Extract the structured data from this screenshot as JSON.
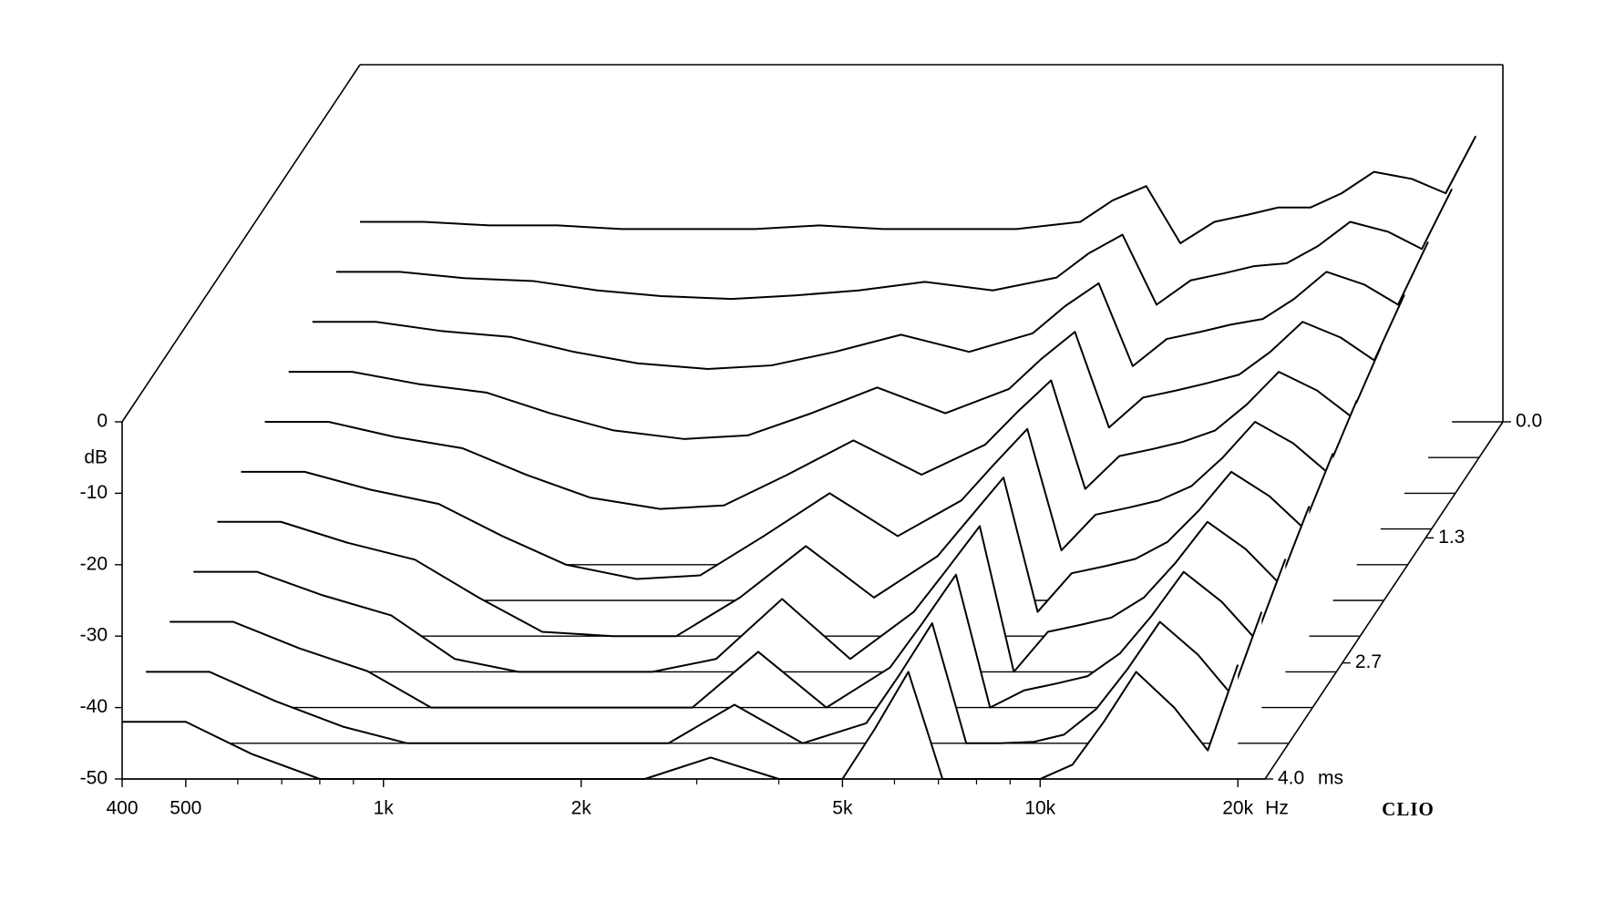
{
  "chart_data": {
    "type": "waterfall",
    "x_unit": "Hz",
    "y_unit": "dB",
    "z_unit": "ms",
    "logo": "CLIO",
    "xscale": "log",
    "xlim": [
      400,
      22000
    ],
    "ylim": [
      -50,
      0
    ],
    "zlim": [
      0,
      4.0
    ],
    "xticks": [
      400,
      500,
      {
        "value": 1000,
        "label": "1k"
      },
      {
        "value": 2000,
        "label": "2k"
      },
      {
        "value": 5000,
        "label": "5k"
      },
      {
        "value": 10000,
        "label": "10k"
      },
      {
        "value": 20000,
        "label": "20k"
      }
    ],
    "xminorticks": [
      600,
      700,
      800,
      900,
      3000,
      4000,
      6000,
      7000,
      8000,
      9000
    ],
    "yticks": [
      0,
      -10,
      -20,
      -30,
      -40,
      -50
    ],
    "zticks": [
      {
        "value": 0,
        "label": "0.0"
      },
      1.3,
      2.7,
      {
        "value": 4.0,
        "label": "4.0"
      }
    ],
    "color": "#000000",
    "x": [
      400,
      500,
      630,
      800,
      1000,
      1250,
      1600,
      2000,
      2500,
      3150,
      4000,
      5000,
      5600,
      6300,
      7100,
      8000,
      9000,
      10000,
      11200,
      12500,
      14000,
      16000,
      18000,
      20000
    ],
    "slices": [
      {
        "time": 0,
        "values": [
          -22,
          -22,
          -22.5,
          -22.5,
          -23,
          -23,
          -23,
          -22.5,
          -23,
          -23,
          -23,
          -22,
          -19,
          -17,
          -25,
          -22,
          -21,
          -20,
          -20,
          -18,
          -15,
          -16,
          -18,
          -10
        ]
      },
      {
        "time": 0.4,
        "values": [
          -24,
          -24,
          -24.9,
          -25.3,
          -26.6,
          -27.4,
          -27.8,
          -27.3,
          -26.6,
          -25.4,
          -26.6,
          -24.8,
          -21.4,
          -18.8,
          -28.6,
          -25.2,
          -24.2,
          -23.2,
          -22.8,
          -20.4,
          -17,
          -18.4,
          -20.8,
          -12.4
        ]
      },
      {
        "time": 0.8,
        "values": [
          -26,
          -26,
          -27.3,
          -28.1,
          -30.2,
          -31.8,
          -32.6,
          -32.1,
          -30.2,
          -27.8,
          -30.2,
          -27.6,
          -23.8,
          -20.6,
          -32.2,
          -28.4,
          -27.4,
          -26.4,
          -25.6,
          -22.8,
          -19,
          -20.8,
          -23.6,
          -14.8
        ]
      },
      {
        "time": 1.2,
        "values": [
          -28,
          -28,
          -29.7,
          -30.9,
          -33.8,
          -36.2,
          -37.4,
          -36.9,
          -33.8,
          -30.2,
          -33.8,
          -30.4,
          -26.2,
          -22.4,
          -35.8,
          -31.6,
          -30.6,
          -29.6,
          -28.4,
          -25.2,
          -21,
          -23.2,
          -26.4,
          -17.2
        ]
      },
      {
        "time": 1.6,
        "values": [
          -30,
          -30,
          -32.1,
          -33.7,
          -37.4,
          -40.6,
          -42.2,
          -41.7,
          -37.4,
          -32.6,
          -37.4,
          -33.2,
          -28.6,
          -24.2,
          -39.4,
          -34.8,
          -33.8,
          -32.8,
          -31.2,
          -27.6,
          -23,
          -25.6,
          -29.2,
          -19.6
        ]
      },
      {
        "time": 2.0,
        "values": [
          -32,
          -32,
          -34.5,
          -36.5,
          -41,
          -45,
          -47,
          -46.5,
          -41,
          -35,
          -41,
          -36,
          -31,
          -26,
          -43,
          -38,
          -37,
          -36,
          -34,
          -30,
          -25,
          -28,
          -32,
          -22
        ]
      },
      {
        "time": 2.4,
        "values": [
          -34,
          -34,
          -36.9,
          -39.3,
          -44.6,
          -49.4,
          -50,
          -50,
          -44.6,
          -37.4,
          -44.6,
          -38.8,
          -33.4,
          -27.8,
          -46.6,
          -41.2,
          -40.2,
          -39.2,
          -36.8,
          -32.4,
          -27,
          -30.4,
          -34.8,
          -24.4
        ]
      },
      {
        "time": 2.8,
        "values": [
          -36,
          -36,
          -39.3,
          -42.1,
          -48.2,
          -50,
          -50,
          -50,
          -48.2,
          -39.8,
          -48.2,
          -41.6,
          -35.8,
          -29.6,
          -50,
          -44.4,
          -43.4,
          -42.4,
          -39.6,
          -34.8,
          -29,
          -32.8,
          -37.6,
          -26.8
        ]
      },
      {
        "time": 3.2,
        "values": [
          -38,
          -38,
          -41.7,
          -44.9,
          -50,
          -50,
          -50,
          -50,
          -50,
          -42.2,
          -50,
          -44.4,
          -38.2,
          -31.4,
          -50,
          -47.6,
          -46.6,
          -45.6,
          -42.4,
          -37.2,
          -31,
          -35.2,
          -40.4,
          -29.2
        ]
      },
      {
        "time": 3.6,
        "values": [
          -40,
          -40,
          -44.1,
          -47.7,
          -50,
          -50,
          -50,
          -50,
          -50,
          -44.6,
          -50,
          -47.2,
          -40.6,
          -33.2,
          -50,
          -50,
          -49.8,
          -48.8,
          -45.2,
          -39.6,
          -33,
          -37.6,
          -43.2,
          -31.6
        ]
      },
      {
        "time": 4.0,
        "values": [
          -42,
          -42,
          -46.5,
          -50,
          -50,
          -50,
          -50,
          -50,
          -50,
          -47,
          -50,
          -50,
          -43,
          -35,
          -50,
          -50,
          -50,
          -50,
          -48,
          -42,
          -35,
          -40,
          -46,
          -34
        ]
      }
    ]
  }
}
